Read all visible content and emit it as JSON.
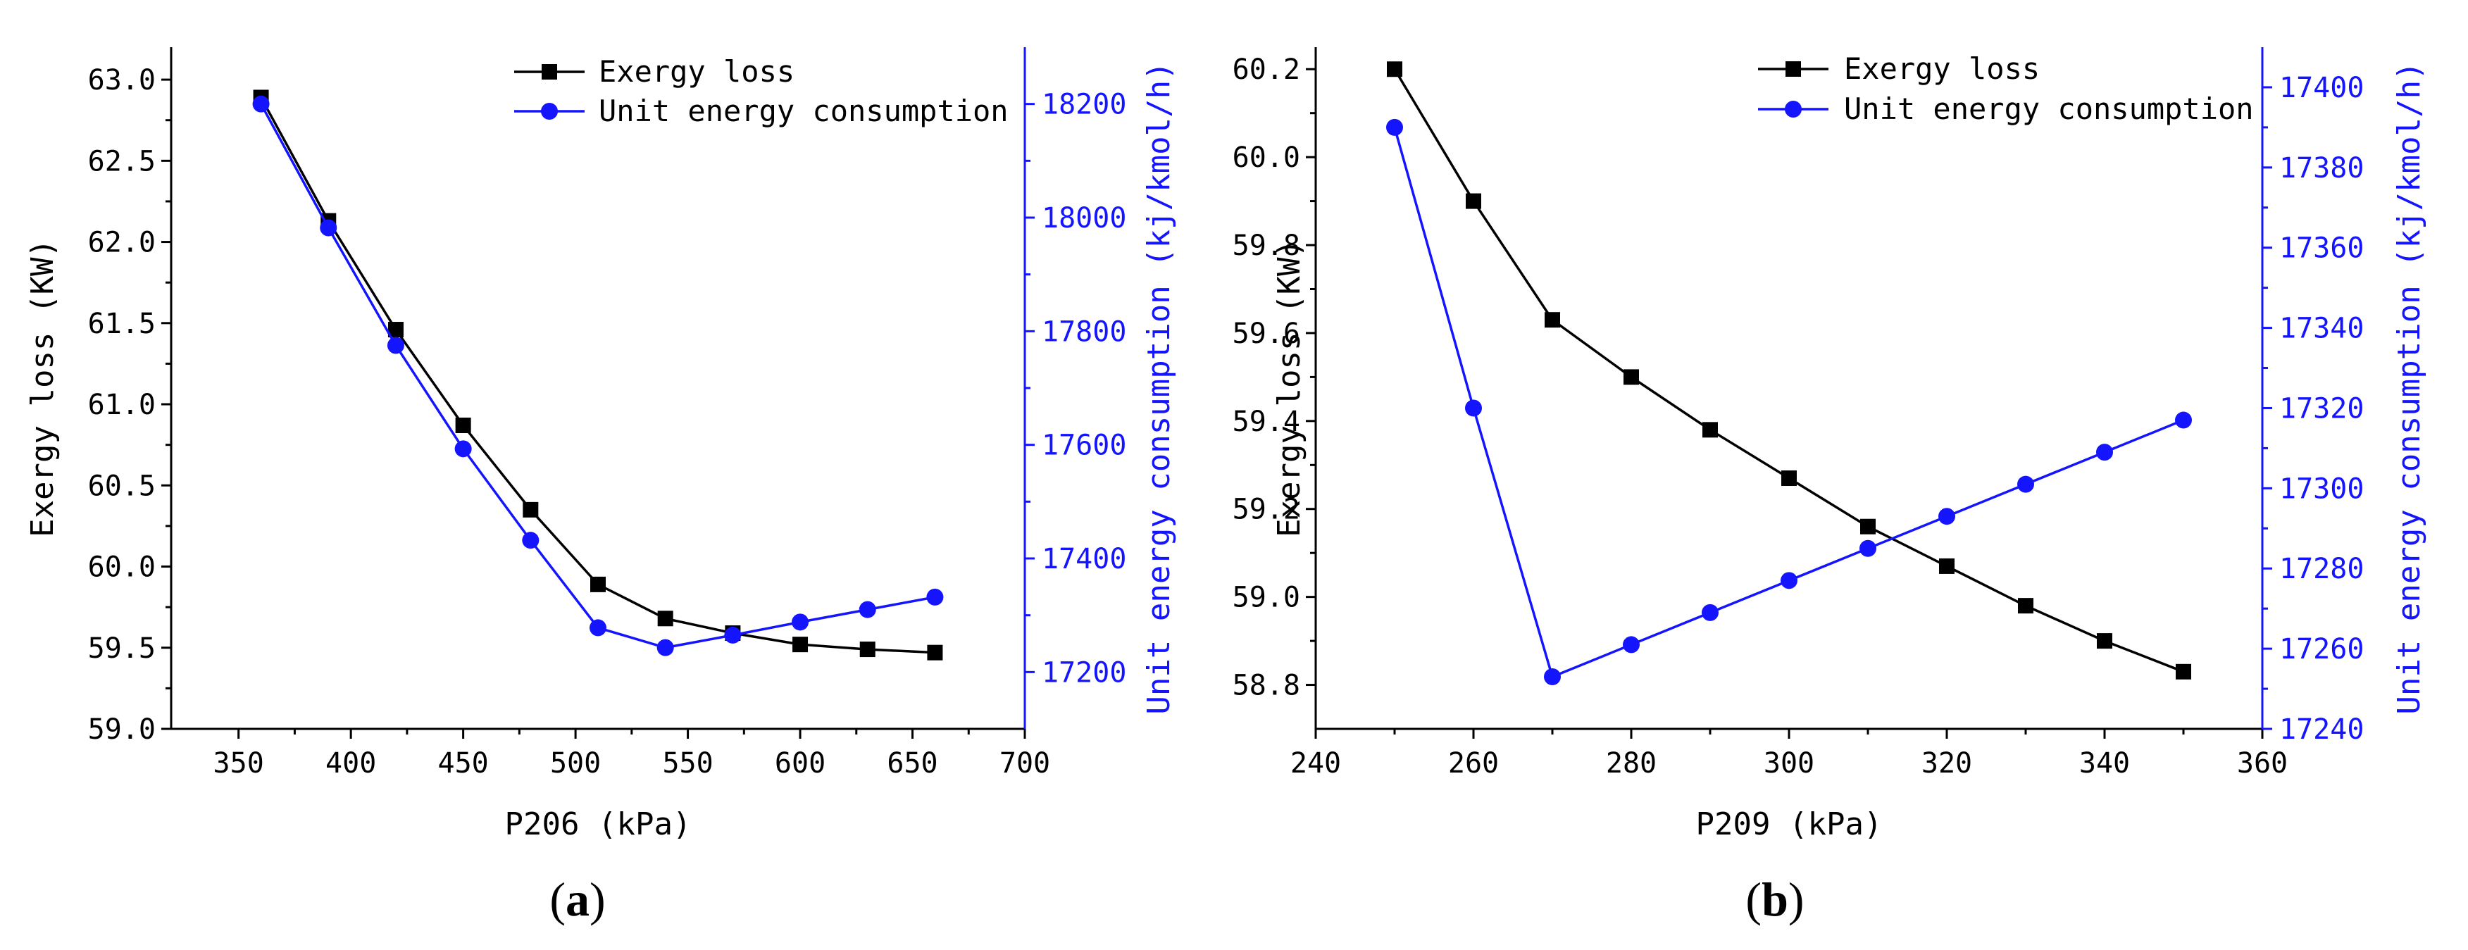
{
  "chart_data": [
    {
      "type": "line",
      "panel_label": "(a)",
      "panel_label_parts": [
        "(",
        "a",
        ")"
      ],
      "xlabel": "P206 (kPa)",
      "ylabel": "Exergy loss (KW)",
      "y2label": "Unit energy consumption (kj/kmol/h)",
      "xlim": [
        320,
        700
      ],
      "xticks": [
        350,
        400,
        450,
        500,
        550,
        600,
        650,
        700
      ],
      "ylim": [
        59.0,
        63.2
      ],
      "yticks": [
        "59.0",
        "59.5",
        "60.0",
        "60.5",
        "61.0",
        "61.5",
        "62.0",
        "62.5",
        "63.0"
      ],
      "y2lim": [
        17100,
        18300
      ],
      "y2ticks": [
        17200,
        17400,
        17600,
        17800,
        18000,
        18200
      ],
      "legend_position": "top-right",
      "x": [
        360,
        390,
        420,
        450,
        480,
        510,
        540,
        570,
        600,
        630,
        660
      ],
      "series": [
        {
          "name": "Exergy loss",
          "axis": "left",
          "color": "#000000",
          "marker": "square",
          "values": [
            62.89,
            62.13,
            61.46,
            60.87,
            60.35,
            59.89,
            59.68,
            59.59,
            59.52,
            59.49,
            59.47
          ]
        },
        {
          "name": "Unit energy consumption",
          "axis": "right",
          "color": "#1414ff",
          "marker": "circle",
          "values": [
            18200,
            17982,
            17775,
            17593,
            17432,
            17278,
            17243,
            17265,
            17288,
            17310,
            17332
          ]
        }
      ]
    },
    {
      "type": "line",
      "panel_label": "(b)",
      "panel_label_parts": [
        "(",
        "b",
        ")"
      ],
      "xlabel": "P209 (kPa)",
      "ylabel": "Exergy loss (KW)",
      "y2label": "Unit energy consumption (kj/kmol/h)",
      "xlim": [
        240,
        360
      ],
      "xticks": [
        240,
        260,
        280,
        300,
        320,
        340,
        360
      ],
      "ylim": [
        58.7,
        60.25
      ],
      "yticks": [
        "58.8",
        "59.0",
        "59.2",
        "59.4",
        "59.6",
        "59.8",
        "60.0",
        "60.2"
      ],
      "y2lim": [
        17240,
        17410
      ],
      "y2ticks": [
        17240,
        17260,
        17280,
        17300,
        17320,
        17340,
        17360,
        17380,
        17400
      ],
      "legend_position": "top-right",
      "x": [
        250,
        260,
        270,
        280,
        290,
        300,
        310,
        320,
        330,
        340,
        350
      ],
      "series": [
        {
          "name": "Exergy loss",
          "axis": "left",
          "color": "#000000",
          "marker": "square",
          "values": [
            60.2,
            59.9,
            59.63,
            59.5,
            59.38,
            59.27,
            59.16,
            59.07,
            58.98,
            58.9,
            58.83
          ]
        },
        {
          "name": "Unit energy consumption",
          "axis": "right",
          "color": "#1414ff",
          "marker": "circle",
          "values": [
            17390,
            17320,
            17253,
            17261,
            17269,
            17277,
            17285,
            17293,
            17301,
            17309,
            17317
          ]
        }
      ]
    }
  ]
}
